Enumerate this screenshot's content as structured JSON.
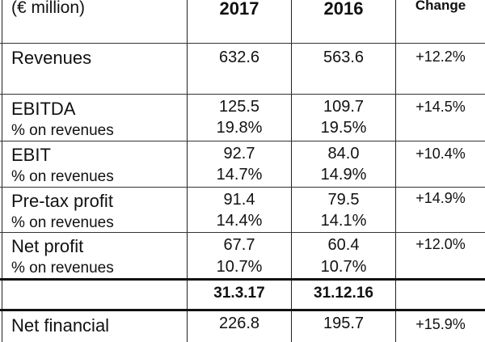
{
  "header": {
    "unit": "(€ million)",
    "col_2017": "2017",
    "col_2016": "2016",
    "col_change": "Change"
  },
  "rows": [
    {
      "label": "Revenues",
      "v2017": "632.6",
      "v2016": "563.6",
      "change": "+12.2%"
    },
    {
      "label": "EBITDA",
      "sub": "% on revenues",
      "v2017": "125.5",
      "s2017": "19.8%",
      "v2016": "109.7",
      "s2016": "19.5%",
      "change": "+14.5%"
    },
    {
      "label": "EBIT",
      "sub": "% on revenues",
      "v2017": "92.7",
      "s2017": "14.7%",
      "v2016": "84.0",
      "s2016": "14.9%",
      "change": "+10.4%"
    },
    {
      "label": "Pre-tax profit",
      "sub": "% on revenues",
      "v2017": "91.4",
      "s2017": "14.4%",
      "v2016": "79.5",
      "s2016": "14.1%",
      "change": "+14.9%"
    },
    {
      "label": "Net profit",
      "sub": "% on revenues",
      "v2017": "67.7",
      "s2017": "10.7%",
      "v2016": "60.4",
      "s2016": "10.7%",
      "change": "+12.0%"
    }
  ],
  "period_header": {
    "col_a": "31.3.17",
    "col_b": "31.12.16"
  },
  "bottom_row": {
    "label": "Net financial",
    "va": "226.8",
    "vb": "195.7",
    "change": "+15.9%"
  }
}
